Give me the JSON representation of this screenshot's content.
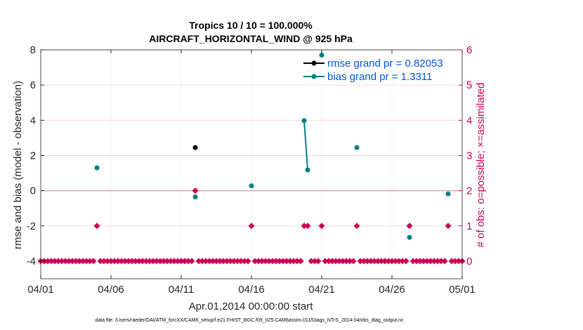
{
  "chart_data": {
    "type": "scatter",
    "title": "Tropics 10 / 10 = 100.000%",
    "subtitle": "AIRCRAFT_HORIZONTAL_WIND @ 925 hPa",
    "xlabel": "Apr.01,2014 00:00:00 start",
    "ylabel": "rmse and bias (model - observation)",
    "y2label": "# of obs: o=possible; ×=assimilated",
    "footer": "data file: /Users/raeder/DAI/ATM_forcXX/CAM6_setup/f.e21.FHIST_BGC.f09_025.CAM6assim.011/Diags_NTrS_2014-04/obs_diag_output.nc",
    "xlim": [
      0,
      30
    ],
    "ylim": [
      -5,
      8
    ],
    "y2lim": [
      -0.5,
      6
    ],
    "x_ticks": [
      0,
      5,
      10,
      15,
      20,
      25,
      30
    ],
    "x_tick_labels": [
      "04/01",
      "04/06",
      "04/11",
      "04/16",
      "04/21",
      "04/26",
      "05/01"
    ],
    "y_ticks": [
      -4,
      -2,
      0,
      2,
      4,
      6,
      8
    ],
    "y_tick_labels": [
      "-4",
      "-2",
      "0",
      "2",
      "4",
      "6",
      "8"
    ],
    "y2_ticks": [
      0,
      1,
      2,
      3,
      4,
      5,
      6
    ],
    "y2_tick_labels": [
      "0",
      "1",
      "2",
      "3",
      "4",
      "5",
      "6"
    ],
    "grid": true,
    "legend_position": "top-right",
    "series": [
      {
        "name": "rmse grand pr = 0.82053",
        "color": "#000000",
        "axis": "left",
        "marker": "circle",
        "x": [
          11.0
        ],
        "y": [
          2.45
        ]
      },
      {
        "name": "bias grand pr = 1.3311",
        "color": "#008080",
        "axis": "left",
        "marker": "circle",
        "x": [
          4.0,
          11.0,
          15.0,
          18.75,
          19.0,
          20.0,
          22.5,
          26.25,
          29.0
        ],
        "y": [
          1.3,
          -0.35,
          0.28,
          3.98,
          1.18,
          7.7,
          2.45,
          -2.65,
          -0.18
        ],
        "connect_segments": [
          [
            3,
            4
          ]
        ]
      },
      {
        "name": "# of obs",
        "color": "#cc0055",
        "axis": "right",
        "marker": "diamond",
        "x": [
          0.0,
          0.25,
          0.5,
          0.75,
          1.0,
          1.25,
          1.5,
          1.75,
          2.0,
          2.25,
          2.5,
          2.75,
          3.0,
          3.25,
          3.5,
          3.75,
          4.0,
          4.25,
          4.5,
          4.75,
          5.0,
          5.25,
          5.5,
          5.75,
          6.0,
          6.25,
          6.5,
          6.75,
          7.0,
          7.25,
          7.5,
          7.75,
          8.0,
          8.25,
          8.5,
          8.75,
          9.0,
          9.25,
          9.5,
          9.75,
          10.0,
          10.25,
          10.5,
          10.75,
          11.0,
          11.25,
          11.5,
          11.75,
          12.0,
          12.25,
          12.5,
          12.75,
          13.0,
          13.25,
          13.5,
          13.75,
          14.0,
          14.25,
          14.5,
          14.75,
          15.0,
          15.25,
          15.5,
          15.75,
          16.0,
          16.25,
          16.5,
          16.75,
          17.0,
          17.25,
          17.5,
          17.75,
          18.0,
          18.25,
          18.5,
          18.75,
          19.0,
          19.25,
          19.5,
          19.75,
          20.0,
          20.25,
          20.5,
          20.75,
          21.0,
          21.25,
          21.5,
          21.75,
          22.0,
          22.25,
          22.5,
          22.75,
          23.0,
          23.25,
          23.5,
          23.75,
          24.0,
          24.25,
          24.5,
          24.75,
          25.0,
          25.25,
          25.5,
          25.75,
          26.0,
          26.25,
          26.5,
          26.75,
          27.0,
          27.25,
          27.5,
          27.75,
          28.0,
          28.25,
          28.5,
          28.75,
          29.0,
          29.25,
          29.5,
          29.75,
          30.0
        ],
        "y": [
          0,
          0,
          0,
          0,
          0,
          0,
          0,
          0,
          0,
          0,
          0,
          0,
          0,
          0,
          0,
          0,
          1,
          0,
          0,
          0,
          0,
          0,
          0,
          0,
          0,
          0,
          0,
          0,
          0,
          0,
          0,
          0,
          0,
          0,
          0,
          0,
          0,
          0,
          0,
          0,
          0,
          0,
          0,
          0,
          2,
          0,
          0,
          0,
          0,
          0,
          0,
          0,
          0,
          0,
          0,
          0,
          0,
          0,
          0,
          0,
          1,
          0,
          0,
          0,
          0,
          0,
          0,
          0,
          0,
          0,
          0,
          0,
          0,
          0,
          0,
          1,
          1,
          0,
          0,
          0,
          1,
          0,
          0,
          0,
          0,
          0,
          0,
          0,
          0,
          0,
          1,
          0,
          0,
          0,
          0,
          0,
          0,
          0,
          0,
          0,
          0,
          0,
          0,
          0,
          0,
          1,
          0,
          0,
          0,
          0,
          0,
          0,
          0,
          0,
          0,
          0,
          1,
          0,
          0,
          0,
          0
        ]
      }
    ]
  }
}
